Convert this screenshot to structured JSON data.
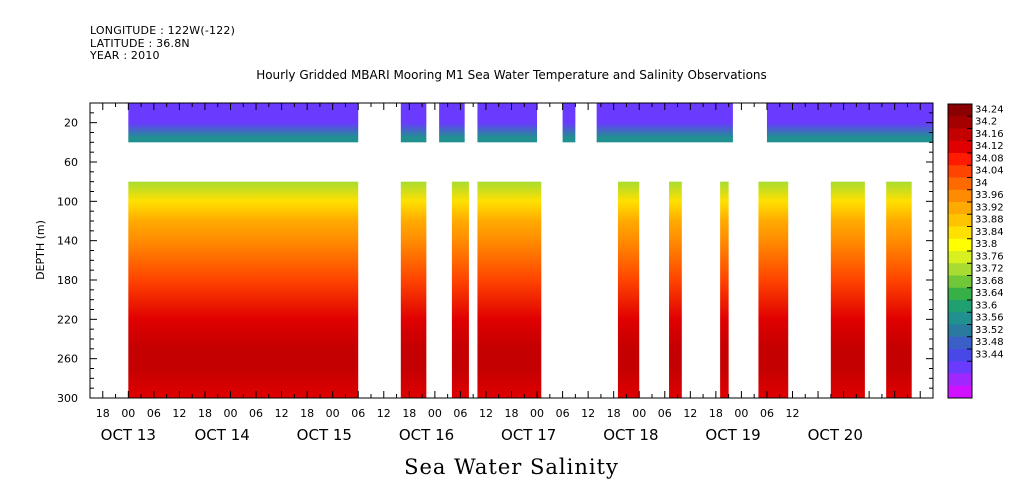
{
  "header": {
    "longitude": "LONGITUDE : 122W(-122)",
    "latitude": "LATITUDE : 36.8N",
    "year": "YEAR : 2010"
  },
  "chart_data": {
    "type": "heatmap",
    "title": "Hourly Gridded MBARI Mooring M1 Sea Water Temperature and Salinity Observations",
    "subtitle": "Sea Water Salinity",
    "ylabel": "DEPTH (m)",
    "xlabel": "",
    "ylim": [
      0,
      300
    ],
    "y_inverted": true,
    "y_ticks": [
      20,
      60,
      100,
      140,
      180,
      220,
      260,
      300
    ],
    "x_range_hours": [
      "2010-10-12T15:00",
      "2010-10-20T21:00"
    ],
    "x_hour_ticks": [
      "18",
      "00",
      "06",
      "12",
      "18",
      "00",
      "06",
      "12",
      "18",
      "00",
      "06",
      "12",
      "18",
      "00",
      "06",
      "12",
      "18",
      "00",
      "06",
      "12",
      "18",
      "00",
      "06",
      "12",
      "18",
      "00",
      "06",
      "12"
    ],
    "x_date_labels": [
      "OCT 13",
      "OCT 14",
      "OCT 15",
      "OCT 16",
      "OCT 17",
      "OCT 18",
      "OCT 19",
      "OCT 20"
    ],
    "colorbar": {
      "levels": [
        "34.24",
        "34.2",
        "34.16",
        "34.12",
        "34.08",
        "34.04",
        "34",
        "33.96",
        "33.92",
        "33.88",
        "33.84",
        "33.8",
        "33.76",
        "33.72",
        "33.68",
        "33.64",
        "33.6",
        "33.56",
        "33.52",
        "33.48",
        "33.44"
      ],
      "min": 33.44,
      "max": 34.28,
      "colors": [
        "#8b0000",
        "#a50000",
        "#c40000",
        "#e00000",
        "#ff1a00",
        "#ff4400",
        "#ff6a00",
        "#ff8c00",
        "#ffaa00",
        "#ffc400",
        "#ffe000",
        "#ffff00",
        "#d8ef20",
        "#a8dc30",
        "#70c838",
        "#38b048",
        "#20a070",
        "#209090",
        "#2a7aa0",
        "#3a60c8",
        "#4848e8",
        "#6a3aff",
        "#a028ff",
        "#d010ff"
      ]
    },
    "depth_profile": [
      {
        "depth": 5,
        "salinity": 33.53
      },
      {
        "depth": 20,
        "salinity": 33.54
      },
      {
        "depth": 35,
        "salinity": 33.66
      },
      {
        "depth": 80,
        "salinity": 33.82
      },
      {
        "depth": 100,
        "salinity": 33.92
      },
      {
        "depth": 120,
        "salinity": 33.97
      },
      {
        "depth": 140,
        "salinity": 34.02
      },
      {
        "depth": 180,
        "salinity": 34.08
      },
      {
        "depth": 220,
        "salinity": 34.16
      },
      {
        "depth": 250,
        "salinity": 34.21
      },
      {
        "depth": 270,
        "salinity": 34.19
      },
      {
        "depth": 300,
        "salinity": 34.16
      }
    ],
    "surface_band": {
      "depth_top": 0,
      "depth_bottom": 40
    },
    "deep_band": {
      "depth_top": 80,
      "depth_bottom": 300
    },
    "data_blocks_deep": [
      {
        "start": "2010-10-13T00:00",
        "end": "2010-10-15T06:00"
      },
      {
        "start": "2010-10-15T16:00",
        "end": "2010-10-15T22:00"
      },
      {
        "start": "2010-10-16T04:00",
        "end": "2010-10-16T08:00"
      },
      {
        "start": "2010-10-16T10:00",
        "end": "2010-10-17T01:00"
      },
      {
        "start": "2010-10-17T19:00",
        "end": "2010-10-18T00:00"
      },
      {
        "start": "2010-10-18T07:00",
        "end": "2010-10-18T10:00"
      },
      {
        "start": "2010-10-18T19:00",
        "end": "2010-10-18T21:00"
      },
      {
        "start": "2010-10-19T04:00",
        "end": "2010-10-19T11:00"
      },
      {
        "start": "2010-10-19T21:00",
        "end": "2010-10-20T05:00"
      },
      {
        "start": "2010-10-20T10:00",
        "end": "2010-10-20T16:00"
      }
    ],
    "data_blocks_surface": [
      {
        "start": "2010-10-13T00:00",
        "end": "2010-10-15T06:00"
      },
      {
        "start": "2010-10-15T16:00",
        "end": "2010-10-15T22:00"
      },
      {
        "start": "2010-10-16T01:00",
        "end": "2010-10-16T07:00"
      },
      {
        "start": "2010-10-16T10:00",
        "end": "2010-10-17T00:00"
      },
      {
        "start": "2010-10-17T06:00",
        "end": "2010-10-17T09:00"
      },
      {
        "start": "2010-10-17T14:00",
        "end": "2010-10-18T22:00"
      },
      {
        "start": "2010-10-19T06:00",
        "end": "2010-10-20T21:00"
      }
    ]
  }
}
